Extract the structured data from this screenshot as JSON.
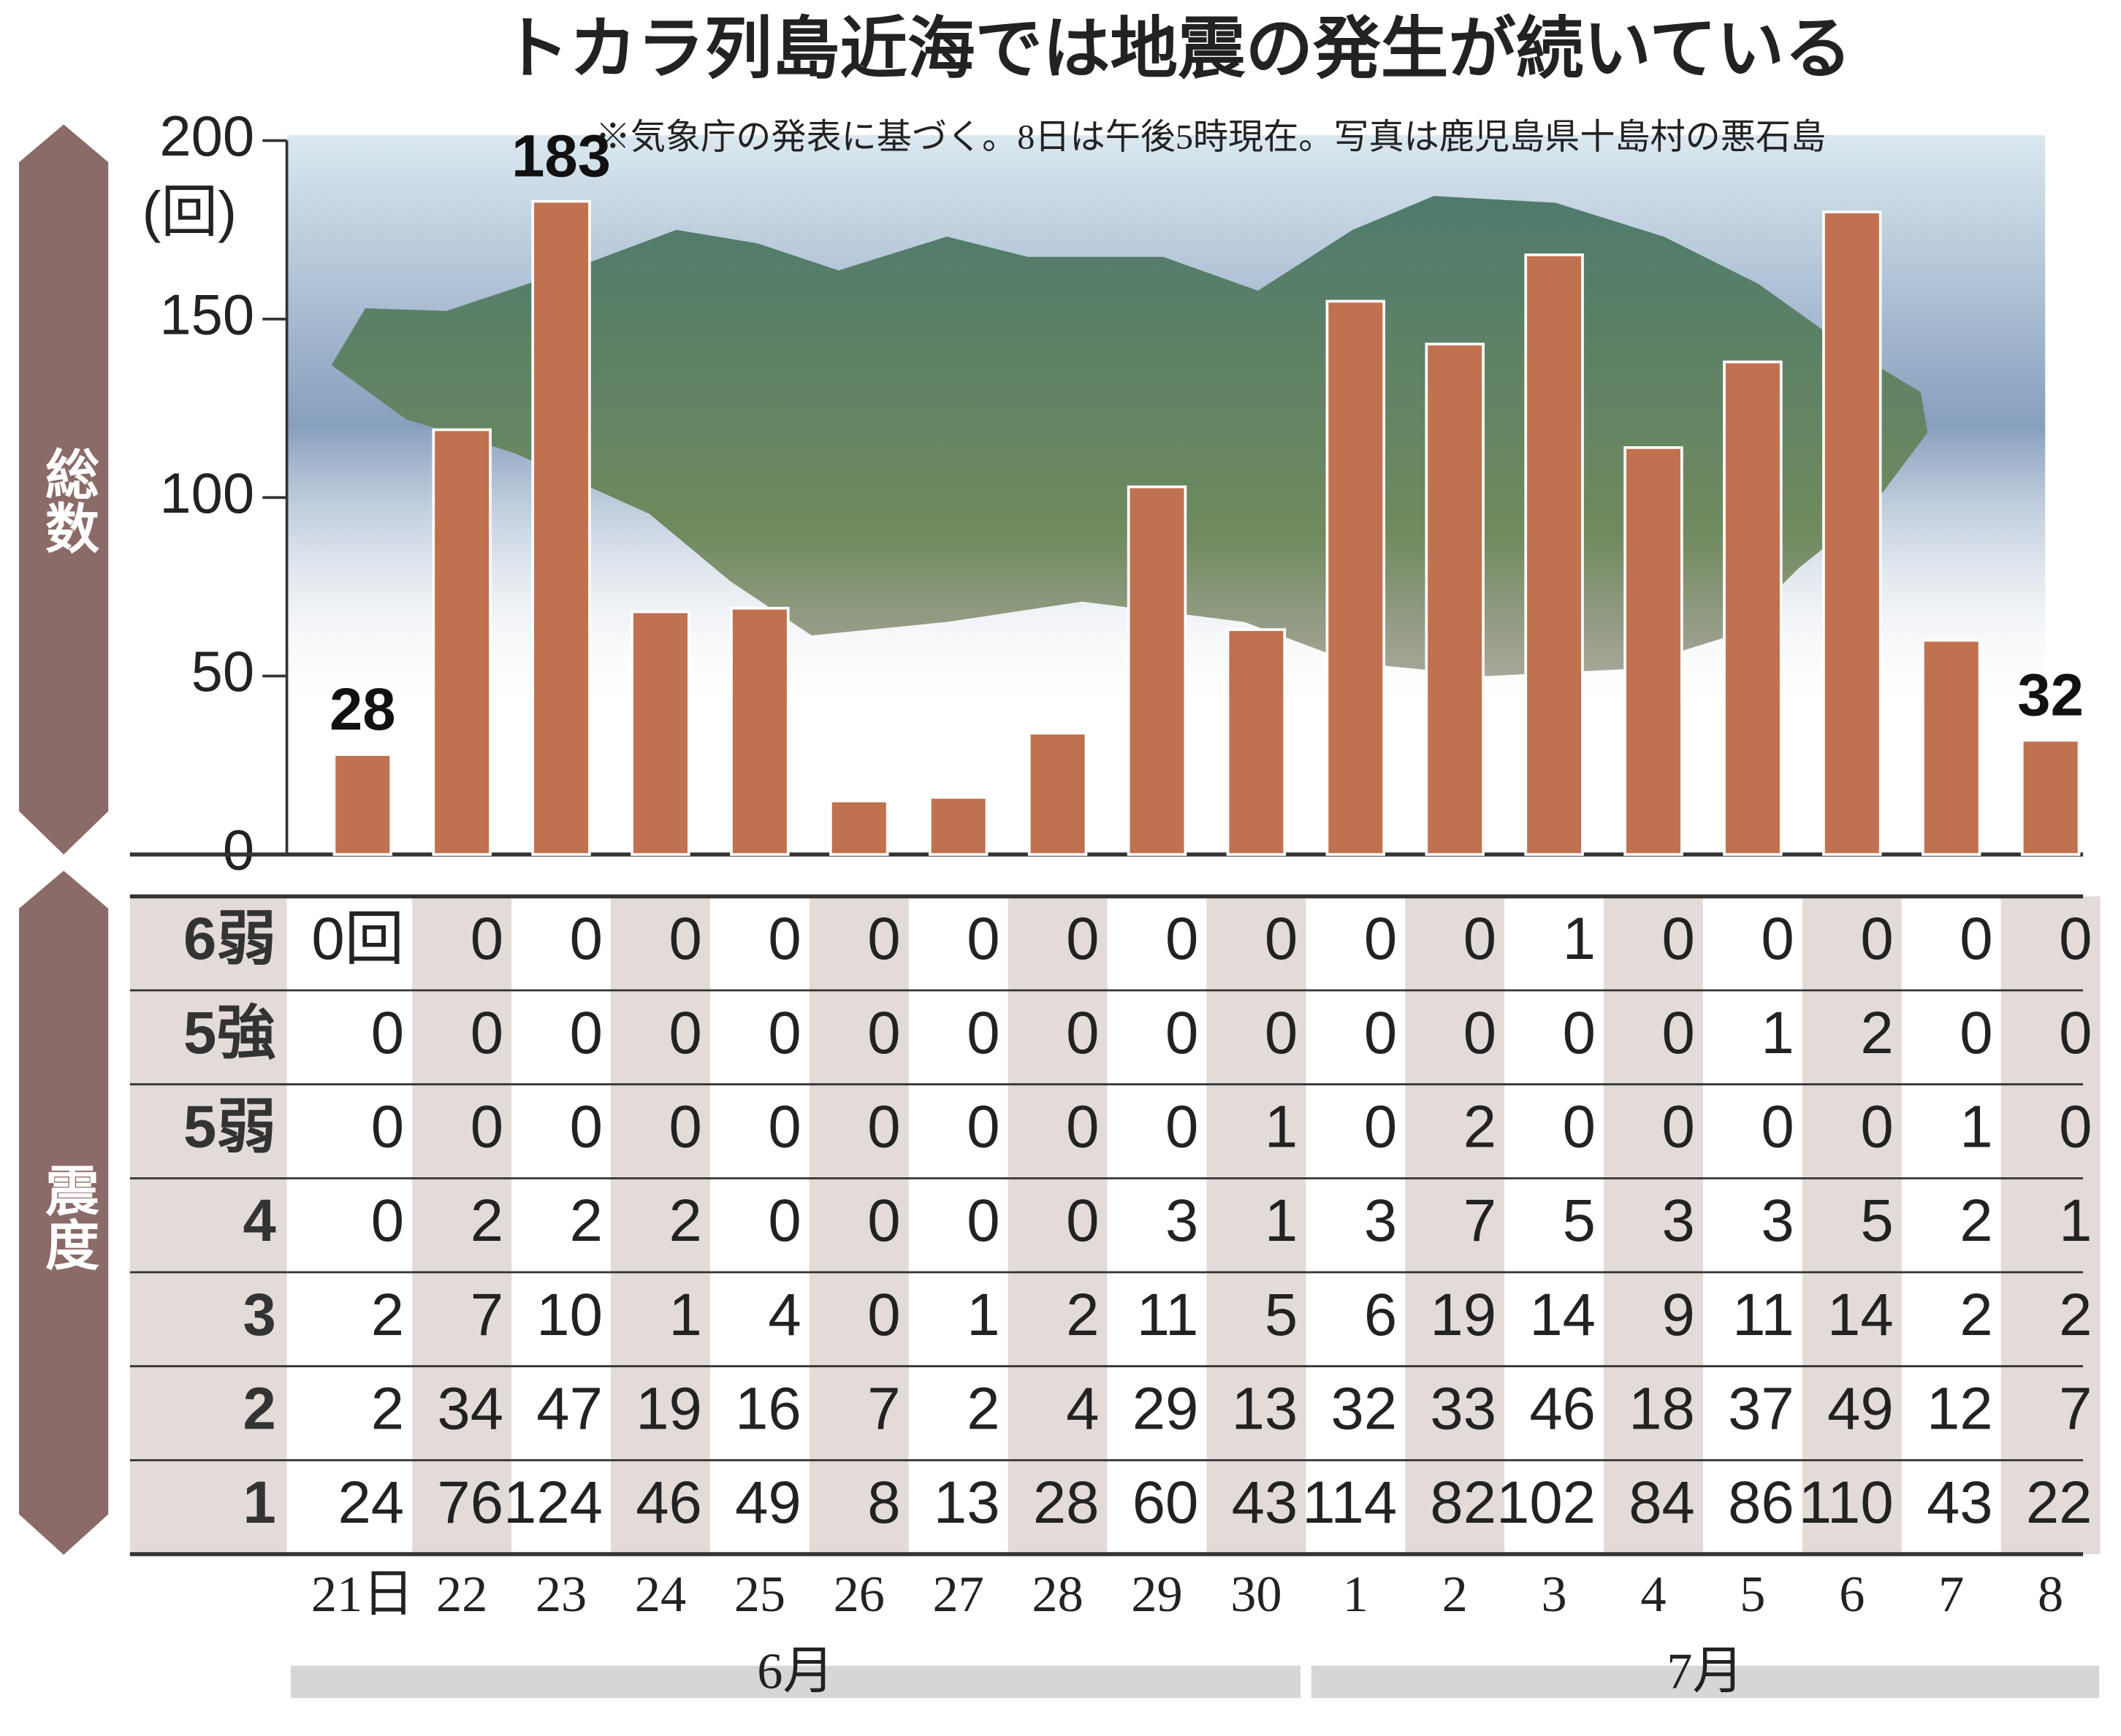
{
  "chart_data": {
    "type": "bar",
    "title": "トカラ列島近海では地震の発生が続いている",
    "subtitle": "※気象庁の発表に基づく。8日は午後5時現在。写真は鹿児島県十島村の悪石島",
    "y_label": "総数",
    "y_unit": "(回)",
    "categories": [
      "21日",
      "22",
      "23",
      "24",
      "25",
      "26",
      "27",
      "28",
      "29",
      "30",
      "1",
      "2",
      "3",
      "4",
      "5",
      "6",
      "7",
      "8"
    ],
    "months": [
      "6月",
      "7月"
    ],
    "values": [
      28,
      119,
      183,
      68,
      69,
      15,
      16,
      34,
      103,
      63,
      155,
      143,
      168,
      114,
      138,
      180,
      60,
      32
    ],
    "value_labels": [
      "28",
      null,
      "183",
      null,
      null,
      null,
      null,
      null,
      null,
      null,
      null,
      null,
      null,
      null,
      null,
      null,
      null,
      "32"
    ],
    "color": "#c0714f",
    "ylim": [
      0,
      200
    ],
    "yticks": [
      0,
      50,
      100,
      150,
      200
    ],
    "table": {
      "title": "震度",
      "row_labels": [
        "6弱",
        "5強",
        "5弱",
        "4",
        "3",
        "2",
        "1"
      ],
      "rows": [
        [
          "0回",
          0,
          0,
          0,
          0,
          0,
          0,
          0,
          0,
          0,
          0,
          0,
          1,
          0,
          0,
          0,
          0,
          0
        ],
        [
          0,
          0,
          0,
          0,
          0,
          0,
          0,
          0,
          0,
          0,
          0,
          0,
          0,
          0,
          1,
          2,
          0,
          0
        ],
        [
          0,
          0,
          0,
          0,
          0,
          0,
          0,
          0,
          0,
          1,
          0,
          2,
          0,
          0,
          0,
          0,
          1,
          0
        ],
        [
          0,
          2,
          2,
          2,
          0,
          0,
          0,
          0,
          3,
          1,
          3,
          7,
          5,
          3,
          3,
          5,
          2,
          1
        ],
        [
          2,
          7,
          10,
          1,
          4,
          0,
          1,
          2,
          11,
          5,
          6,
          19,
          14,
          9,
          11,
          14,
          2,
          2
        ],
        [
          2,
          34,
          47,
          19,
          16,
          7,
          2,
          4,
          29,
          13,
          32,
          33,
          46,
          18,
          37,
          49,
          12,
          7
        ],
        [
          24,
          76,
          124,
          46,
          49,
          8,
          13,
          28,
          60,
          43,
          114,
          82,
          102,
          84,
          86,
          110,
          43,
          22
        ]
      ]
    }
  }
}
